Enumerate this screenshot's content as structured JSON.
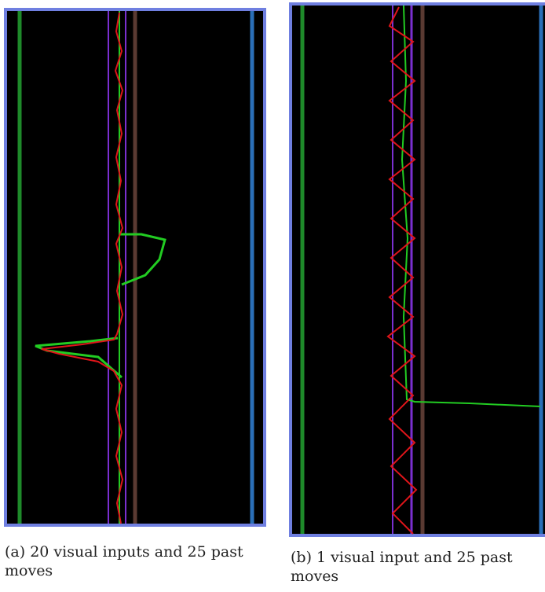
{
  "figures": [
    {
      "caption": "(a) 20 visual inputs and 25 past moves"
    },
    {
      "caption": "(b) 1 visual input and 25 past moves"
    }
  ]
}
